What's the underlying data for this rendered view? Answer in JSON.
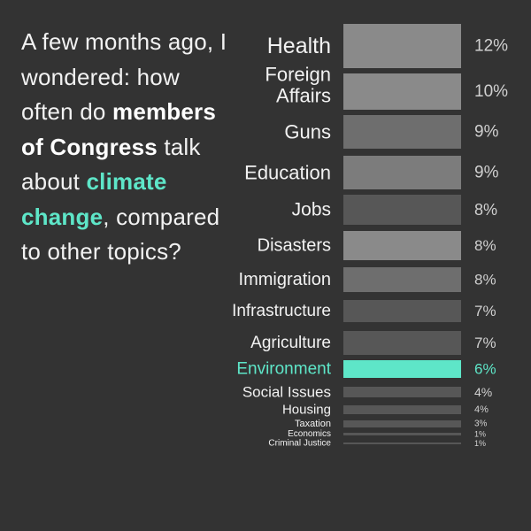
{
  "intro": {
    "line1": "A few months ago, I wondered: how often do ",
    "bold1": "members of Congress",
    "line2": " talk about ",
    "accent": "climate change",
    "line3": ", compared to other topics?"
  },
  "colors": {
    "background": "#333333",
    "text": "#f2f2f2",
    "muted_text": "#d0d0d0",
    "accent": "#5ee6c8"
  },
  "chart_data": {
    "type": "bar",
    "orientation": "horizontal",
    "categories": [
      "Health",
      "Foreign Affairs",
      "Guns",
      "Education",
      "Jobs",
      "Disasters",
      "Immigration",
      "Infrastructure",
      "Agriculture",
      "Environment",
      "Social Issues",
      "Housing",
      "Taxation",
      "Economics",
      "Criminal Justice"
    ],
    "values": [
      12,
      10,
      9,
      9,
      8,
      8,
      8,
      7,
      7,
      6,
      4,
      4,
      3,
      1,
      1
    ],
    "value_labels": [
      "12%",
      "10%",
      "9%",
      "9%",
      "8%",
      "8%",
      "8%",
      "7%",
      "7%",
      "6%",
      "4%",
      "4%",
      "3%",
      "1%",
      "1%"
    ],
    "bar_colors": [
      "#8a8a8a",
      "#8a8a8a",
      "#6e6e6e",
      "#7c7c7c",
      "#575757",
      "#8a8a8a",
      "#6e6e6e",
      "#575757",
      "#575757",
      "#5ee6c8",
      "#575757",
      "#575757",
      "#575757",
      "#575757",
      "#575757"
    ],
    "highlight": "Environment",
    "title": "",
    "xlabel": "",
    "ylabel": ""
  }
}
